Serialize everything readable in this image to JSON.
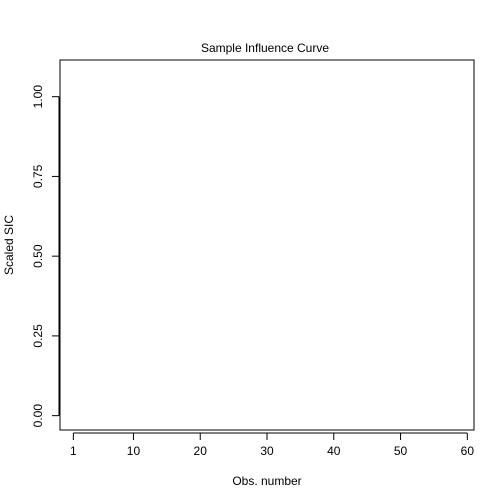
{
  "chart_data": {
    "type": "scatter",
    "title": "Sample Influence Curve",
    "xlabel": "Obs. number",
    "ylabel": "Scaled SIC",
    "xlim": [
      -1,
      61
    ],
    "ylim": [
      -0.045,
      1.115
    ],
    "x_ticks": [
      1,
      10,
      20,
      30,
      40,
      50,
      60
    ],
    "x_tick_labels": [
      "1",
      "10",
      "20",
      "30",
      "40",
      "50",
      "60"
    ],
    "y_ticks": [
      0,
      0.25,
      0.5,
      0.75,
      1.0
    ],
    "y_tick_labels": [
      "0.00",
      "0.25",
      "0.50",
      "0.75",
      "1.00"
    ],
    "grid": false,
    "series": [
      {
        "x": [],
        "y": []
      }
    ]
  }
}
